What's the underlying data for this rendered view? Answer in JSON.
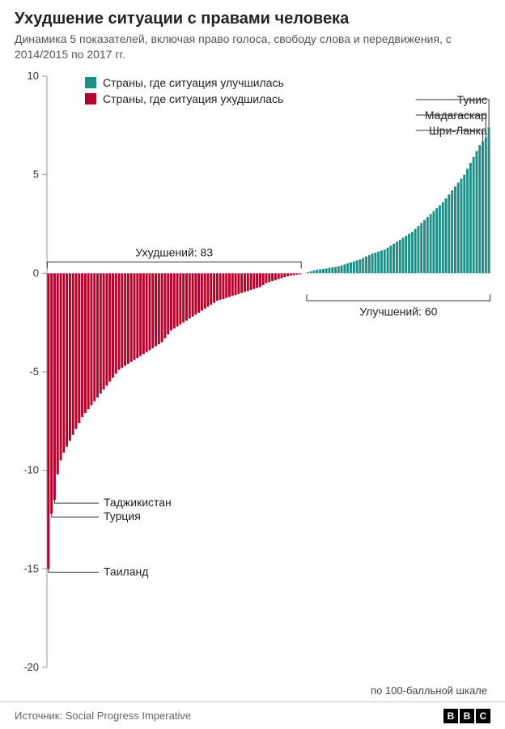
{
  "title": "Ухудшение ситуации с правами человека",
  "subtitle": "Динамика 5 показателей, включая право голоса, свободу слова и передвижения, с 2014/2015 по 2017 гг.",
  "source_label": "Источник: Social Progress Imperative",
  "brand": [
    "B",
    "B",
    "C"
  ],
  "scale_note": "по 100-балльной шкале",
  "chart": {
    "type": "bar",
    "ylim": [
      -20,
      10
    ],
    "ytick_step": 5,
    "yticks": [
      -20,
      -15,
      -10,
      -5,
      0,
      5,
      10
    ],
    "background_color": "#ffffff",
    "axis_color": "#999999",
    "tick_color": "#999999",
    "tick_font_size": 13,
    "bar_gap_ratio": 0.22,
    "colors": {
      "improved": "#1f8f86",
      "worsened": "#b8002a"
    },
    "legend": {
      "improved": "Страны, где ситуация улучшилась",
      "worsened": "Страны, где ситуация ухудшилась"
    },
    "brackets": {
      "worsened": {
        "label": "Ухудшений: 83",
        "count": 83
      },
      "improved": {
        "label": "Улучшений: 60",
        "count": 60
      }
    },
    "callouts": {
      "top": [
        {
          "label": "Тунис",
          "index_from_end": 0
        },
        {
          "label": "Мадагаскар",
          "index_from_end": 1
        },
        {
          "label": "Шри-Ланка",
          "index_from_end": 2
        }
      ],
      "bottom": [
        {
          "label": "Таиланд",
          "index_from_start": 0
        },
        {
          "label": "Турция",
          "index_from_start": 1
        },
        {
          "label": "Таджикистан",
          "index_from_start": 2
        }
      ]
    },
    "worsened_values": [
      -15.0,
      -12.2,
      -11.5,
      -10.2,
      -9.5,
      -9.1,
      -8.8,
      -8.5,
      -8.2,
      -7.9,
      -7.6,
      -7.3,
      -7.1,
      -6.9,
      -6.7,
      -6.5,
      -6.3,
      -6.1,
      -5.9,
      -5.7,
      -5.5,
      -5.3,
      -5.1,
      -4.9,
      -4.8,
      -4.7,
      -4.6,
      -4.5,
      -4.4,
      -4.3,
      -4.2,
      -4.1,
      -4.0,
      -3.9,
      -3.8,
      -3.7,
      -3.6,
      -3.5,
      -3.3,
      -3.1,
      -2.9,
      -2.8,
      -2.7,
      -2.6,
      -2.5,
      -2.4,
      -2.3,
      -2.2,
      -2.1,
      -2.0,
      -1.9,
      -1.8,
      -1.7,
      -1.6,
      -1.5,
      -1.4,
      -1.35,
      -1.3,
      -1.25,
      -1.2,
      -1.15,
      -1.1,
      -1.05,
      -1.0,
      -0.95,
      -0.9,
      -0.85,
      -0.8,
      -0.75,
      -0.7,
      -0.6,
      -0.5,
      -0.45,
      -0.4,
      -0.35,
      -0.3,
      -0.25,
      -0.2,
      -0.15,
      -0.12,
      -0.1,
      -0.08,
      -0.05
    ],
    "improved_values": [
      0.05,
      0.1,
      0.15,
      0.18,
      0.2,
      0.22,
      0.25,
      0.28,
      0.3,
      0.32,
      0.35,
      0.4,
      0.45,
      0.5,
      0.55,
      0.6,
      0.65,
      0.7,
      0.78,
      0.85,
      0.92,
      1.0,
      1.05,
      1.1,
      1.15,
      1.2,
      1.3,
      1.4,
      1.5,
      1.6,
      1.7,
      1.8,
      1.9,
      2.0,
      2.1,
      2.25,
      2.4,
      2.55,
      2.7,
      2.85,
      3.0,
      3.15,
      3.3,
      3.45,
      3.6,
      3.8,
      4.0,
      4.2,
      4.4,
      4.6,
      4.8,
      5.0,
      5.3,
      5.6,
      5.9,
      6.2,
      6.5,
      6.7,
      6.9,
      7.4
    ]
  }
}
